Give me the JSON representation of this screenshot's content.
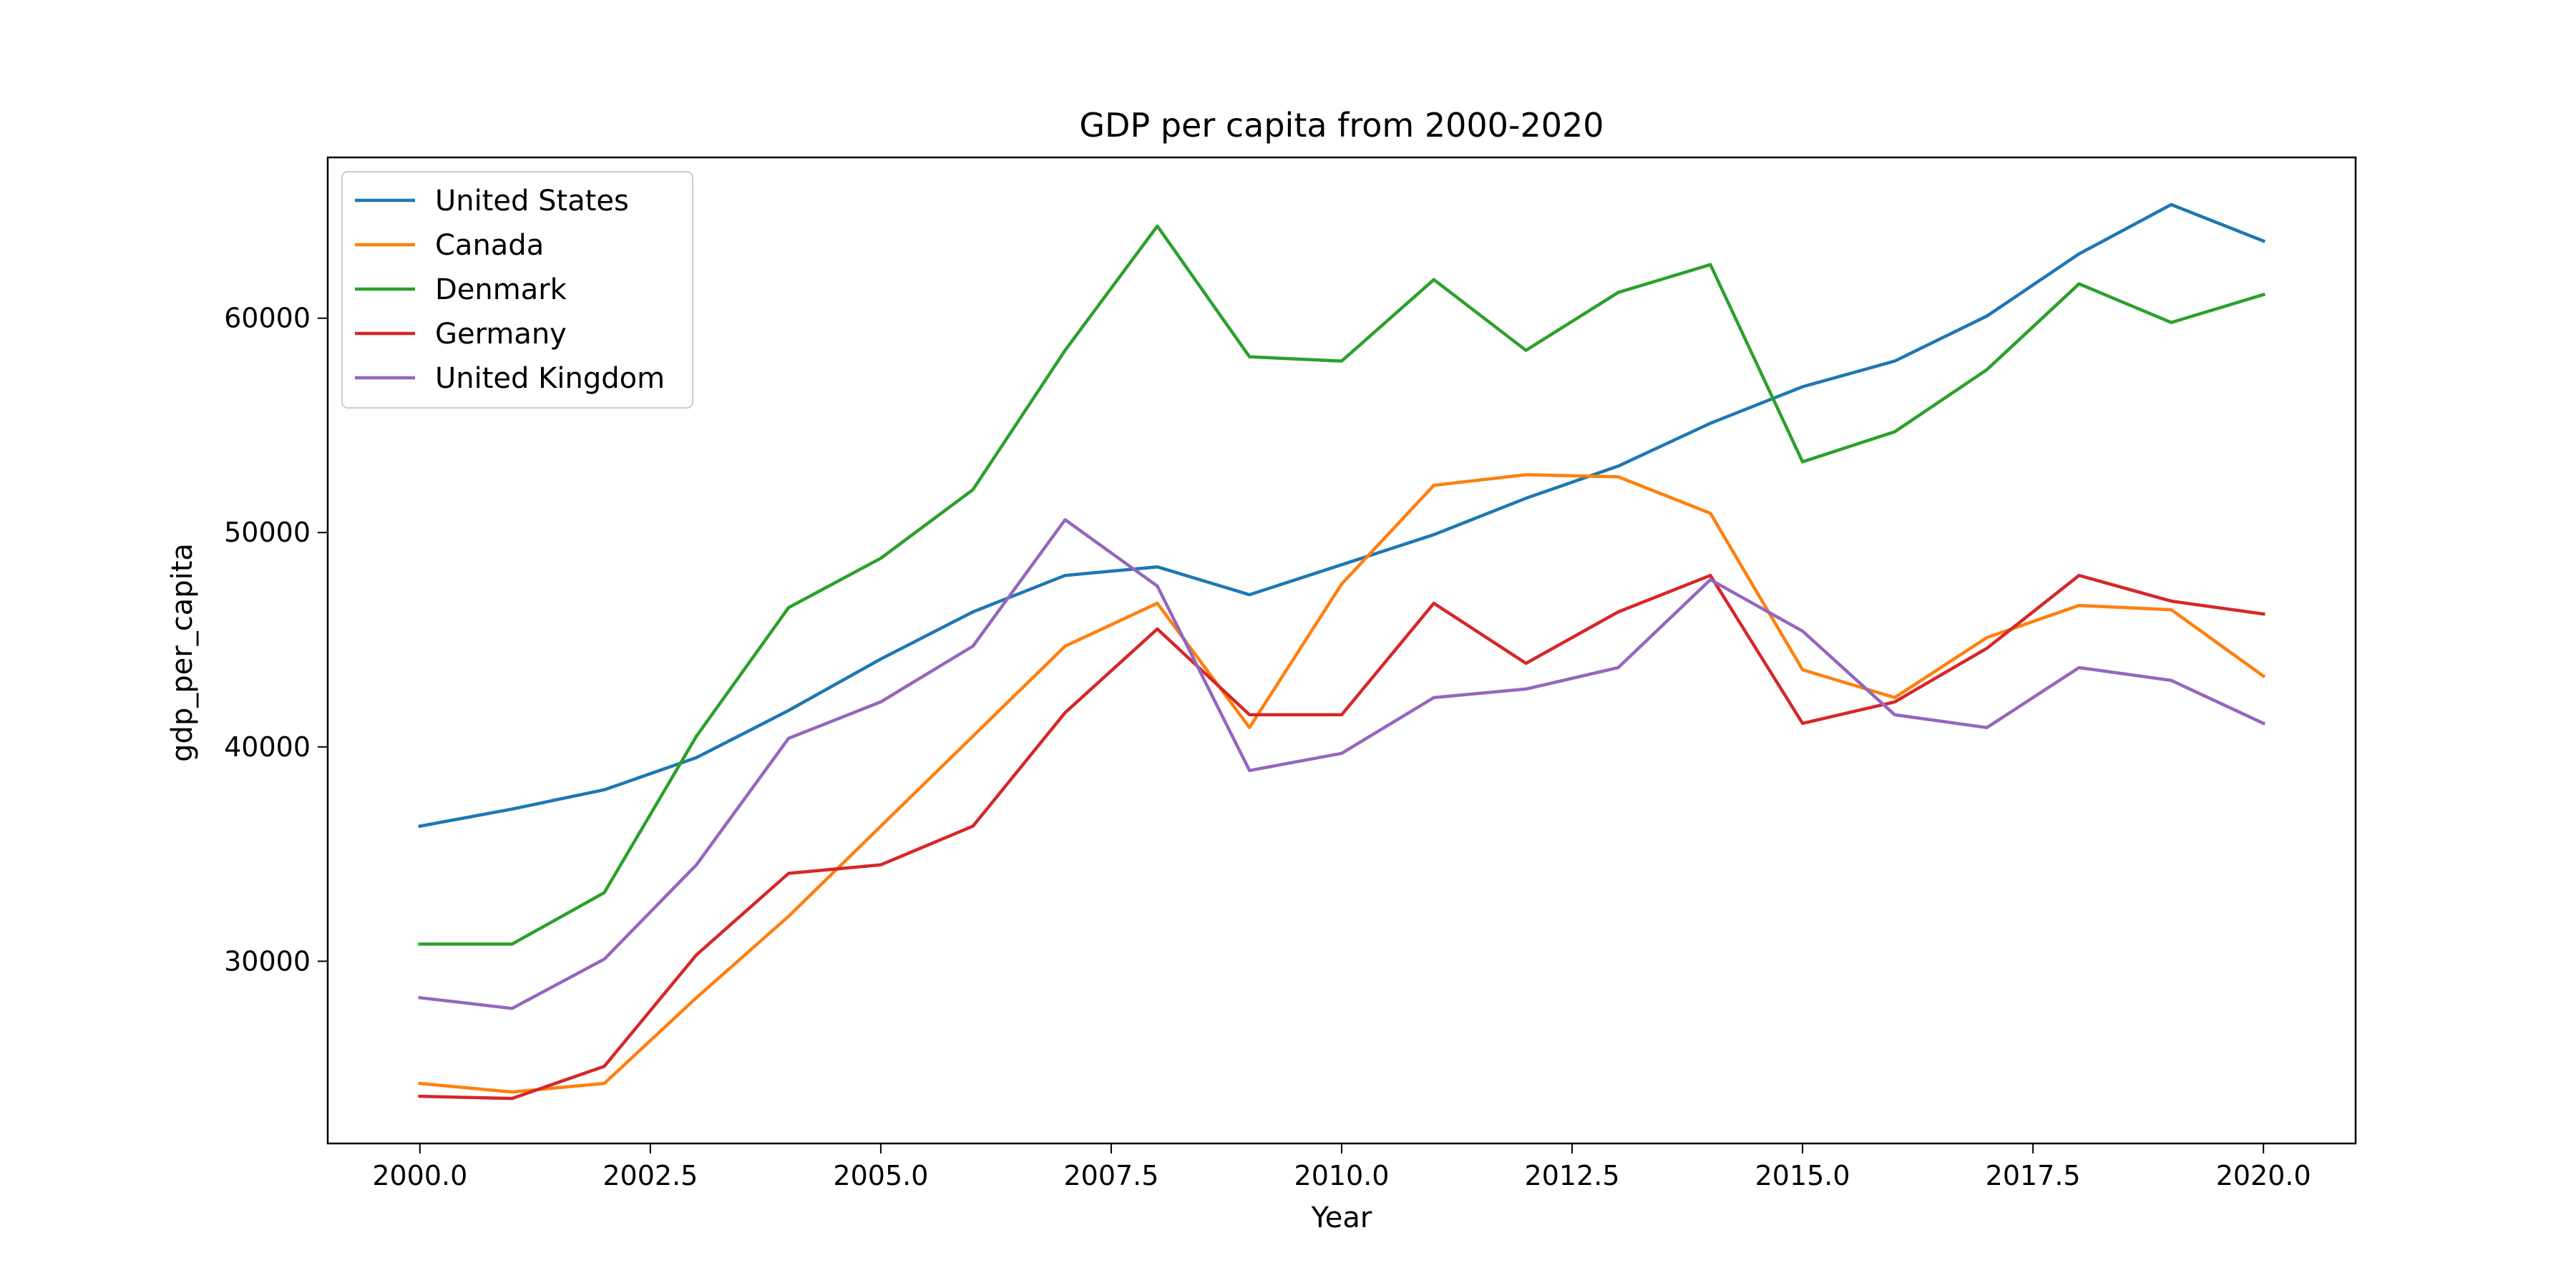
{
  "chart_data": {
    "type": "line",
    "title": "GDP per capita from 2000-2020",
    "xlabel": "Year",
    "ylabel": "gdp_per_capita",
    "xlim": [
      1999.0,
      2021.0
    ],
    "ylim": [
      21500,
      67500
    ],
    "xticks": [
      2000.0,
      2002.5,
      2005.0,
      2007.5,
      2010.0,
      2012.5,
      2015.0,
      2017.5,
      2020.0
    ],
    "xtick_labels": [
      "2000.0",
      "2002.5",
      "2005.0",
      "2007.5",
      "2010.0",
      "2012.5",
      "2015.0",
      "2017.5",
      "2020.0"
    ],
    "yticks": [
      30000,
      40000,
      50000,
      60000
    ],
    "ytick_labels": [
      "30000",
      "40000",
      "50000",
      "60000"
    ],
    "grid": false,
    "legend_position": "top-left",
    "x": [
      2000,
      2001,
      2002,
      2003,
      2004,
      2005,
      2006,
      2007,
      2008,
      2009,
      2010,
      2011,
      2012,
      2013,
      2014,
      2015,
      2016,
      2017,
      2018,
      2019,
      2020
    ],
    "series": [
      {
        "name": "United States",
        "color": "#1f77b4",
        "values": [
          36300,
          37100,
          38000,
          39500,
          41700,
          44100,
          46300,
          48000,
          48400,
          47100,
          48500,
          49900,
          51600,
          53100,
          55100,
          56800,
          58000,
          60100,
          63000,
          65300,
          63600
        ]
      },
      {
        "name": "Canada",
        "color": "#ff7f0e",
        "values": [
          24300,
          23900,
          24300,
          28300,
          32100,
          36300,
          40500,
          44700,
          46700,
          40900,
          47600,
          52200,
          52700,
          52600,
          50900,
          43600,
          42300,
          45100,
          46600,
          46400,
          43300
        ]
      },
      {
        "name": "Denmark",
        "color": "#2ca02c",
        "values": [
          30800,
          30800,
          33200,
          40500,
          46500,
          48800,
          52000,
          58500,
          64300,
          58200,
          58000,
          61800,
          58500,
          61200,
          62500,
          53300,
          54700,
          57600,
          61600,
          59800,
          61100
        ]
      },
      {
        "name": "Germany",
        "color": "#d62728",
        "values": [
          23700,
          23600,
          25100,
          30300,
          34100,
          34500,
          36300,
          41600,
          45500,
          41500,
          41500,
          46700,
          43900,
          46300,
          48000,
          41100,
          42100,
          44600,
          48000,
          46800,
          46200
        ]
      },
      {
        "name": "United Kingdom",
        "color": "#9467bd",
        "values": [
          28300,
          27800,
          30100,
          34500,
          40400,
          42100,
          44700,
          50600,
          47500,
          38900,
          39700,
          42300,
          42700,
          43700,
          47800,
          45400,
          41500,
          40900,
          43700,
          43100,
          41100
        ]
      }
    ]
  }
}
